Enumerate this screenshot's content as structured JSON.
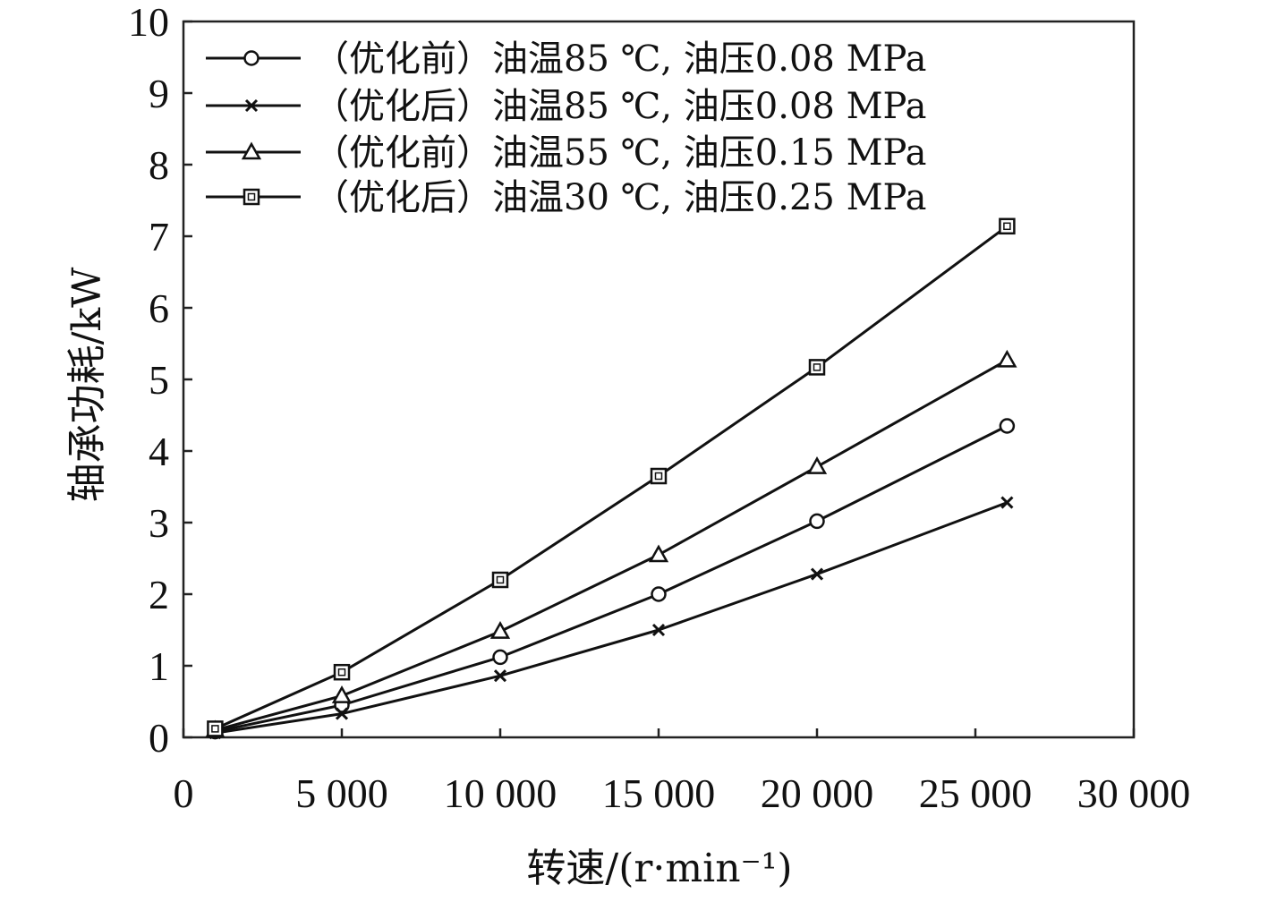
{
  "chart_data": {
    "type": "line",
    "xlabel": "转速/(r·min⁻¹)",
    "ylabel": "轴承功耗/kW",
    "xlim": [
      0,
      30000
    ],
    "ylim": [
      0,
      10
    ],
    "x_ticks": [
      "0",
      "5 000",
      "10 000",
      "15 000",
      "20 000",
      "25 000",
      "30 000"
    ],
    "y_ticks": [
      "0",
      "1",
      "2",
      "3",
      "4",
      "5",
      "6",
      "7",
      "8",
      "9",
      "10"
    ],
    "grid": false,
    "legend_position": "top-left",
    "series": [
      {
        "name": "（优化前）油温85 ℃, 油压0.08 MPa",
        "marker": "circle",
        "x": [
          1000,
          5000,
          10000,
          15000,
          20000,
          26000
        ],
        "y": [
          0.08,
          0.45,
          1.12,
          2.0,
          3.02,
          4.35
        ]
      },
      {
        "name": "（优化后）油温85 ℃, 油压0.08 MPa",
        "marker": "cross",
        "x": [
          1000,
          5000,
          10000,
          15000,
          20000,
          26000
        ],
        "y": [
          0.06,
          0.33,
          0.86,
          1.5,
          2.28,
          3.28
        ]
      },
      {
        "name": "（优化前）油温55 ℃, 油压0.15 MPa",
        "marker": "triangle",
        "x": [
          1000,
          5000,
          10000,
          15000,
          20000,
          26000
        ],
        "y": [
          0.1,
          0.58,
          1.48,
          2.55,
          3.78,
          5.27
        ]
      },
      {
        "name": "（优化后）油温30 ℃, 油压0.25 MPa",
        "marker": "square",
        "x": [
          1000,
          5000,
          10000,
          15000,
          20000,
          26000
        ],
        "y": [
          0.12,
          0.91,
          2.2,
          3.65,
          5.17,
          7.14
        ]
      }
    ],
    "colors": {
      "line": "#111111",
      "axis": "#222222",
      "background": "#ffffff"
    }
  }
}
